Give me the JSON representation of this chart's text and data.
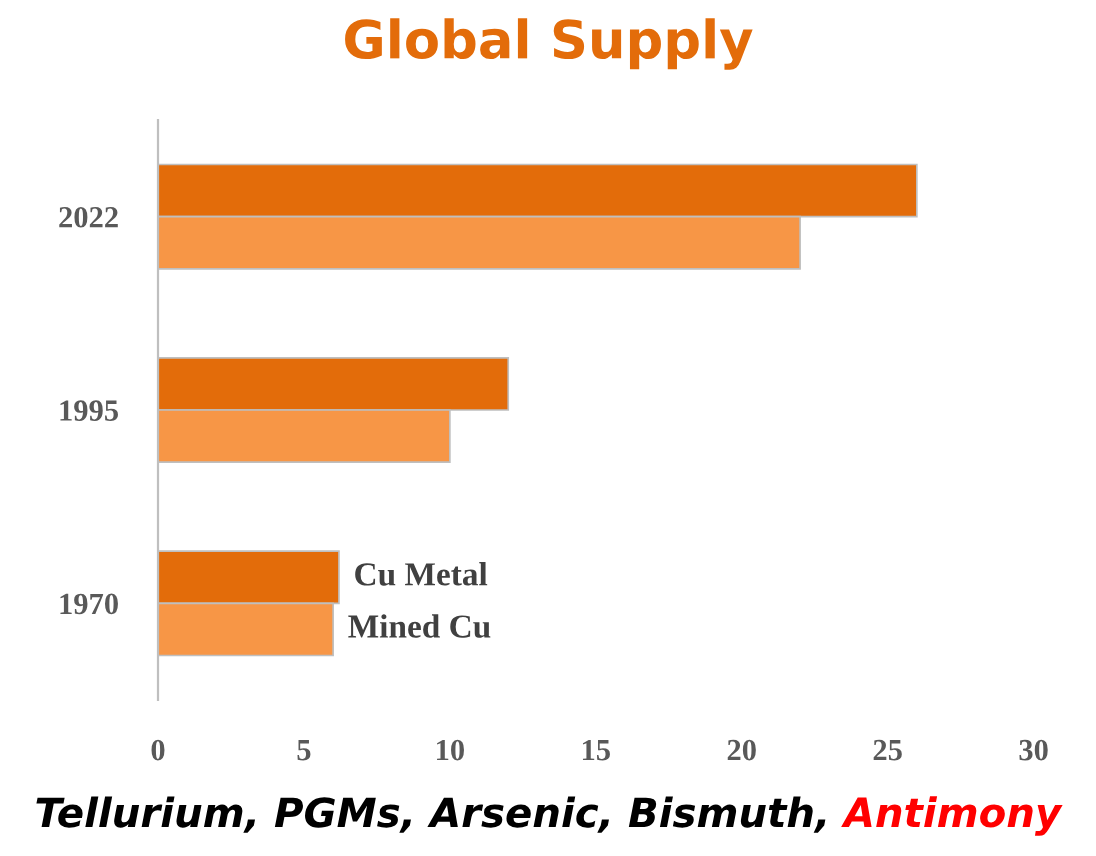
{
  "chart_data": {
    "type": "bar",
    "orientation": "horizontal",
    "title": "Global Supply",
    "categories": [
      "2022",
      "1995",
      "1970"
    ],
    "series": [
      {
        "name": "Cu Metal",
        "color": "#e36c0a",
        "values": [
          26,
          12,
          6.2
        ]
      },
      {
        "name": "Mined Cu",
        "color": "#f79646",
        "values": [
          22,
          10,
          6
        ]
      }
    ],
    "xlim": [
      0,
      30
    ],
    "xticks": [
      0,
      5,
      10,
      15,
      20,
      25,
      30
    ],
    "grid": false,
    "legend": false,
    "annotations": [
      "Tellurium, PGMs, Arsenic, Bismuth, ",
      "Antimony"
    ]
  }
}
